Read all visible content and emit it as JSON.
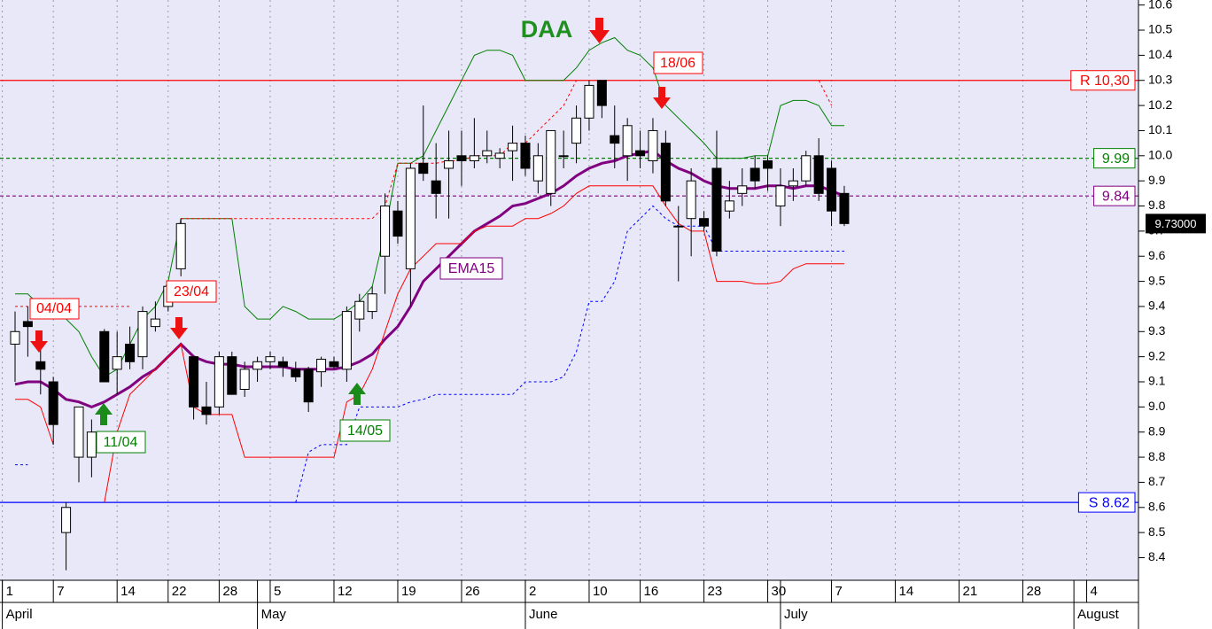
{
  "chart_data": {
    "type": "candlestick",
    "grid": "x",
    "xlim": [
      -1.18,
      88.06
    ],
    "ylim": [
      8.31,
      10.62
    ],
    "yticks": [
      8.4,
      8.5,
      8.6,
      8.7,
      8.8,
      8.9,
      {
        "value": 9,
        "label": "9.0"
      },
      9.1,
      9.2,
      9.3,
      9.4,
      9.5,
      9.6,
      9.7,
      9.8,
      9.9,
      {
        "value": 10,
        "label": "10.0"
      },
      10.1,
      10.2,
      10.3,
      10.4,
      10.5,
      10.6
    ],
    "xticks": [
      {
        "value": -1,
        "label": "1"
      },
      {
        "value": 3,
        "label": "7"
      },
      {
        "value": 8,
        "label": "14"
      },
      {
        "value": 12,
        "label": "22"
      },
      {
        "value": 16,
        "label": "28"
      },
      {
        "value": 20,
        "label": "5"
      },
      {
        "value": 25,
        "label": "12"
      },
      {
        "value": 30,
        "label": "19"
      },
      {
        "value": 35,
        "label": "26"
      },
      {
        "value": 40,
        "label": "2"
      },
      {
        "value": 45,
        "label": "10"
      },
      {
        "value": 49,
        "label": "16"
      },
      {
        "value": 54,
        "label": "23"
      },
      {
        "value": 59,
        "label": "30"
      },
      {
        "value": 64,
        "label": "7"
      },
      {
        "value": 69,
        "label": "14"
      },
      {
        "value": 74,
        "label": "21"
      },
      {
        "value": 79,
        "label": "28"
      },
      {
        "value": 84,
        "label": "4"
      }
    ],
    "month_ticks": [
      {
        "value": -1,
        "label": "April"
      },
      {
        "value": 19,
        "label": "May"
      },
      {
        "value": 40,
        "label": "June"
      },
      {
        "value": 60,
        "label": "July"
      },
      {
        "value": 83,
        "label": "August"
      }
    ],
    "open": [
      9.25,
      9.34,
      9.18,
      9.1,
      8.5,
      8.8,
      8.8,
      9.3,
      9.15,
      9.25,
      9.2,
      9.32,
      9.4,
      9.55,
      9.2,
      9.0,
      9.0,
      9.2,
      9.07,
      9.15,
      9.18,
      9.18,
      9.15,
      9.15,
      9.14,
      9.18,
      9.15,
      9.35,
      9.38,
      9.6,
      9.78,
      9.55,
      9.97,
      9.9,
      9.95,
      10.0,
      9.98,
      10.0,
      9.99,
      10.02,
      10.05,
      9.9,
      9.85,
      10.0,
      10.05,
      10.15,
      10.3,
      10.08,
      10.0,
      10.02,
      9.98,
      10.05,
      9.72,
      9.75,
      9.75,
      9.95,
      9.78,
      9.85,
      9.95,
      9.98,
      9.8,
      9.88,
      9.9,
      10.0,
      9.95,
      9.85
    ],
    "high": [
      9.38,
      9.4,
      9.3,
      9.12,
      8.62,
      9.0,
      8.95,
      9.31,
      9.3,
      9.32,
      9.4,
      9.42,
      9.5,
      9.75,
      9.2,
      9.1,
      9.22,
      9.22,
      9.18,
      9.2,
      9.22,
      9.2,
      9.18,
      9.16,
      9.2,
      9.2,
      9.4,
      9.45,
      9.48,
      9.85,
      9.82,
      9.97,
      10.2,
      10.05,
      10.1,
      10.1,
      10.15,
      10.1,
      10.03,
      10.12,
      10.08,
      10.05,
      10.1,
      10.1,
      10.2,
      10.3,
      10.3,
      10.2,
      10.15,
      10.1,
      10.15,
      10.1,
      9.8,
      9.95,
      9.78,
      10.1,
      9.9,
      9.95,
      10.0,
      10.0,
      9.95,
      9.95,
      10.02,
      10.07,
      9.98,
      9.88
    ],
    "low": [
      9.1,
      9.2,
      9.05,
      8.85,
      8.35,
      8.7,
      8.72,
      9.1,
      9.05,
      9.15,
      9.15,
      9.3,
      9.38,
      9.52,
      8.95,
      8.93,
      8.97,
      9.05,
      9.04,
      9.1,
      9.15,
      9.12,
      9.1,
      8.98,
      9.08,
      9.15,
      9.1,
      9.3,
      9.35,
      9.45,
      9.65,
      9.4,
      9.9,
      9.75,
      9.75,
      9.88,
      9.95,
      9.97,
      9.95,
      9.9,
      9.92,
      9.85,
      9.8,
      9.95,
      9.97,
      10.1,
      10.15,
      9.95,
      9.9,
      9.95,
      9.93,
      9.8,
      9.5,
      9.6,
      9.7,
      9.6,
      9.75,
      9.8,
      9.87,
      9.86,
      9.72,
      9.82,
      9.88,
      9.82,
      9.72,
      9.72
    ],
    "close": [
      9.3,
      9.32,
      9.15,
      8.93,
      8.6,
      9.0,
      8.9,
      9.1,
      9.2,
      9.18,
      9.38,
      9.35,
      9.48,
      9.73,
      9.0,
      8.97,
      9.2,
      9.05,
      9.15,
      9.18,
      9.2,
      9.16,
      9.12,
      9.02,
      9.19,
      9.16,
      9.38,
      9.42,
      9.45,
      9.8,
      9.68,
      9.95,
      9.93,
      9.85,
      9.98,
      9.98,
      10.0,
      10.02,
      10.01,
      10.05,
      9.95,
      10.0,
      10.1,
      10.0,
      10.15,
      10.28,
      10.2,
      10.05,
      10.12,
      10.0,
      10.1,
      9.82,
      9.72,
      9.9,
      9.72,
      9.62,
      9.82,
      9.88,
      9.9,
      9.95,
      9.88,
      9.9,
      10.0,
      9.85,
      9.78,
      9.73
    ],
    "series": [
      {
        "name": "EMA15",
        "color": "#800080",
        "width": 3,
        "dash": false,
        "values": [
          9.09,
          9.1,
          9.1,
          9.07,
          9.03,
          9.02,
          9.0,
          9.02,
          9.05,
          9.08,
          9.12,
          9.15,
          9.2,
          9.25,
          9.2,
          9.18,
          9.17,
          9.17,
          9.16,
          9.16,
          9.16,
          9.16,
          9.15,
          9.15,
          9.15,
          9.15,
          9.16,
          9.18,
          9.21,
          9.27,
          9.32,
          9.4,
          9.5,
          9.55,
          9.6,
          9.65,
          9.7,
          9.73,
          9.76,
          9.8,
          9.81,
          9.83,
          9.85,
          9.88,
          9.92,
          9.95,
          9.97,
          9.98,
          10.0,
          10.01,
          10.02,
          9.98,
          9.95,
          9.93,
          9.9,
          9.88,
          9.87,
          9.87,
          9.87,
          9.88,
          9.88,
          9.87,
          9.88,
          9.88,
          9.86,
          9.84
        ]
      },
      {
        "color": "#008000",
        "width": 1,
        "dash": false,
        "values": [
          9.45,
          9.45,
          9.4,
          9.38,
          9.35,
          9.3,
          9.2,
          9.12,
          9.15,
          9.25,
          9.35,
          9.4,
          9.5,
          9.75,
          9.75,
          9.75,
          9.75,
          9.75,
          9.4,
          9.35,
          9.35,
          9.4,
          9.38,
          9.35,
          9.35,
          9.35,
          9.38,
          9.42,
          9.48,
          9.7,
          9.97,
          9.97,
          10.0,
          10.1,
          10.2,
          10.3,
          10.4,
          10.42,
          10.42,
          10.4,
          10.3,
          10.3,
          10.3,
          10.3,
          10.35,
          10.42,
          10.45,
          10.47,
          10.42,
          10.4,
          10.35,
          10.2,
          10.15,
          10.1,
          10.05,
          9.99,
          9.99,
          9.99,
          10.0,
          10.0,
          10.2,
          10.22,
          10.22,
          10.2,
          10.12,
          10.12
        ]
      },
      {
        "color": "#ff0000",
        "width": 1,
        "dash": false,
        "values": [
          9.03,
          9.03,
          9.0,
          8.85,
          null,
          null,
          null,
          8.62,
          8.9,
          9.05,
          9.1,
          9.15,
          9.2,
          9.25,
          9.0,
          8.97,
          8.97,
          8.97,
          8.8,
          8.8,
          8.8,
          8.8,
          8.8,
          8.8,
          8.8,
          8.8,
          9.02,
          9.05,
          9.15,
          9.3,
          9.45,
          9.55,
          9.6,
          9.65,
          9.65,
          9.65,
          9.7,
          9.72,
          9.72,
          9.72,
          9.75,
          9.75,
          9.77,
          9.8,
          9.85,
          9.88,
          9.88,
          9.88,
          9.88,
          9.88,
          9.88,
          9.8,
          9.73,
          9.7,
          9.7,
          9.5,
          9.5,
          9.5,
          9.49,
          9.49,
          9.5,
          9.55,
          9.57,
          9.57,
          9.57,
          9.57
        ]
      },
      {
        "color": "#0000ff",
        "width": 1,
        "dash": true,
        "values": [
          8.77,
          8.77,
          null,
          null,
          null,
          null,
          null,
          null,
          null,
          null,
          null,
          null,
          null,
          null,
          null,
          null,
          null,
          null,
          null,
          null,
          null,
          null,
          8.62,
          8.82,
          8.85,
          8.85,
          8.85,
          9.0,
          9.0,
          9.0,
          9.0,
          9.02,
          9.03,
          9.05,
          9.05,
          9.05,
          9.05,
          9.05,
          9.05,
          9.05,
          9.1,
          9.1,
          9.1,
          9.12,
          9.22,
          9.42,
          9.42,
          9.5,
          9.7,
          9.75,
          9.8,
          9.75,
          9.72,
          9.72,
          9.72,
          9.62,
          9.62,
          9.62,
          9.62,
          9.62,
          9.62,
          9.62,
          9.62,
          9.62,
          9.62,
          9.62
        ]
      },
      {
        "color": "#ff0000",
        "width": 1,
        "dash": true,
        "values": [
          9.4,
          9.4,
          9.4,
          9.4,
          9.4,
          9.4,
          9.4,
          9.4,
          9.4,
          9.4,
          null,
          null,
          null,
          9.75,
          9.75,
          9.75,
          9.75,
          9.75,
          9.75,
          9.75,
          9.75,
          9.75,
          9.75,
          9.75,
          9.75,
          9.75,
          9.75,
          9.75,
          9.75,
          9.8,
          9.97,
          9.97,
          9.97,
          9.97,
          9.98,
          9.98,
          10.0,
          10.0,
          10.0,
          10.05,
          10.05,
          10.1,
          10.15,
          10.2,
          10.3,
          null,
          null,
          null,
          null,
          null,
          null,
          null,
          null,
          null,
          null,
          null,
          null,
          null,
          null,
          null,
          null,
          null,
          null,
          10.3,
          10.2,
          null
        ]
      }
    ],
    "levels": [
      {
        "value": 10.3,
        "label": "R 10,30",
        "color": "#ff0000",
        "dash": false
      },
      {
        "value": 9.99,
        "label": "9.99",
        "color": "#008000",
        "dash": true
      },
      {
        "value": 9.84,
        "label": "9.84",
        "color": "#800080",
        "dash": true
      },
      {
        "value": 8.62,
        "label": "S 8.62",
        "color": "#0000ff",
        "dash": false
      }
    ],
    "last_price": {
      "value": 9.73,
      "label": "9.73000"
    },
    "annotations": [
      "DAA",
      "18/06",
      "04/04",
      "23/04",
      "11/04",
      "14/05",
      "EMA15"
    ]
  }
}
